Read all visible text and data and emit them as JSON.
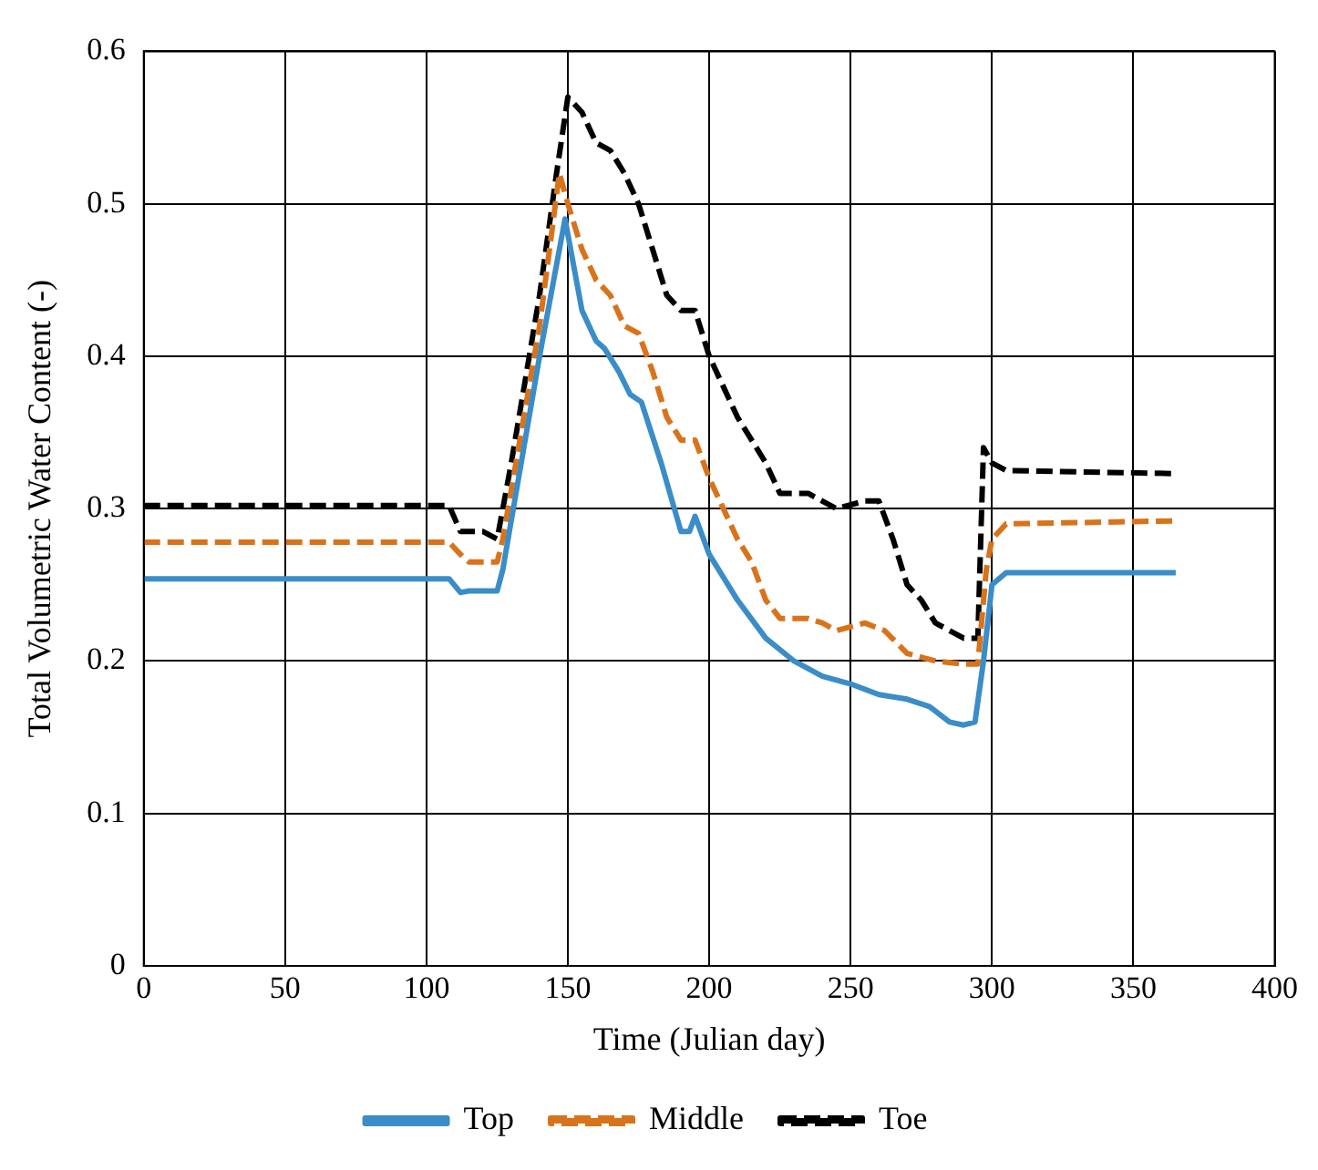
{
  "chart_data": {
    "type": "line",
    "xlabel": "Time (Julian day)",
    "ylabel": "Total Volumetric Water Content (-)",
    "xlim": [
      0,
      400
    ],
    "xticks": [
      0,
      50,
      100,
      150,
      200,
      250,
      300,
      350,
      400
    ],
    "ylim": [
      0,
      0.6
    ],
    "yticks": [
      0,
      0.1,
      0.2,
      0.3,
      0.4,
      0.5,
      0.6
    ],
    "grid": true,
    "legend": "bottom",
    "marker": "none",
    "series": [
      {
        "name": "Top",
        "color": "#3a8dc8",
        "line_style": "solid",
        "x": [
          0,
          108,
          112,
          115,
          125,
          127,
          140,
          149,
          155,
          160,
          163,
          168,
          172,
          176,
          183,
          190,
          193,
          195,
          200,
          210,
          220,
          230,
          240,
          250,
          260,
          270,
          278,
          285,
          290,
          294,
          297,
          300,
          305,
          365
        ],
        "values": [
          0.254,
          0.254,
          0.245,
          0.246,
          0.246,
          0.26,
          0.4,
          0.49,
          0.43,
          0.41,
          0.405,
          0.39,
          0.375,
          0.37,
          0.33,
          0.285,
          0.285,
          0.295,
          0.27,
          0.24,
          0.215,
          0.2,
          0.19,
          0.185,
          0.178,
          0.175,
          0.17,
          0.16,
          0.158,
          0.16,
          0.2,
          0.25,
          0.258,
          0.258
        ]
      },
      {
        "name": "Middle",
        "color": "#d9731b",
        "line_style": "dashed",
        "x": [
          0,
          108,
          112,
          115,
          125,
          127,
          140,
          147,
          150,
          155,
          160,
          165,
          170,
          175,
          180,
          185,
          190,
          195,
          200,
          210,
          215,
          220,
          225,
          235,
          240,
          245,
          255,
          262,
          270,
          280,
          290,
          295,
          298,
          300,
          305,
          365
        ],
        "values": [
          0.278,
          0.278,
          0.27,
          0.265,
          0.265,
          0.28,
          0.42,
          0.52,
          0.5,
          0.47,
          0.45,
          0.44,
          0.42,
          0.415,
          0.39,
          0.36,
          0.345,
          0.345,
          0.32,
          0.28,
          0.265,
          0.24,
          0.228,
          0.228,
          0.225,
          0.22,
          0.225,
          0.22,
          0.205,
          0.2,
          0.198,
          0.198,
          0.26,
          0.28,
          0.29,
          0.292
        ]
      },
      {
        "name": "Toe",
        "color": "#000000",
        "line_style": "dashed",
        "x": [
          0,
          108,
          112,
          120,
          125,
          130,
          140,
          146,
          150,
          155,
          160,
          165,
          170,
          175,
          180,
          185,
          190,
          195,
          200,
          210,
          220,
          225,
          235,
          245,
          255,
          260,
          265,
          270,
          275,
          280,
          290,
          295,
          297,
          300,
          305,
          365
        ],
        "values": [
          0.302,
          0.302,
          0.285,
          0.285,
          0.28,
          0.33,
          0.44,
          0.52,
          0.57,
          0.56,
          0.54,
          0.535,
          0.52,
          0.5,
          0.47,
          0.44,
          0.43,
          0.43,
          0.4,
          0.36,
          0.33,
          0.31,
          0.31,
          0.3,
          0.305,
          0.305,
          0.28,
          0.25,
          0.24,
          0.225,
          0.215,
          0.215,
          0.34,
          0.33,
          0.325,
          0.323
        ]
      }
    ]
  }
}
